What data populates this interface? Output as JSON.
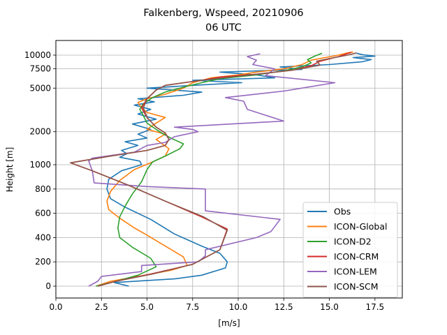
{
  "chart_data": {
    "type": "line",
    "title_line1": "Falkenberg, Wspeed, 20210906",
    "title_line2": "06 UTC",
    "xlabel": "[m/s]",
    "ylabel": "Height [m]",
    "xlim": [
      0,
      19
    ],
    "x_ticks": [
      0.0,
      2.5,
      5.0,
      7.5,
      10.0,
      12.5,
      15.0,
      17.5
    ],
    "x_tick_labels": [
      "0.0",
      "2.5",
      "5.0",
      "7.5",
      "10.0",
      "12.5",
      "15.0",
      "17.5"
    ],
    "y_ticks": [
      0,
      200,
      400,
      600,
      800,
      1000,
      2000,
      5000,
      7500,
      10000
    ],
    "y_tick_labels": [
      "0",
      "200",
      "400",
      "600",
      "800",
      "1000",
      "2000",
      "5000",
      "7500",
      "10000"
    ],
    "y_scale": "piecewise: linear 0-1000 m, logarithmic above 1000 m",
    "grid": true,
    "legend_position": "lower right",
    "series": [
      {
        "name": "Obs",
        "color": "#1f77b4",
        "points": [
          [
            4.0,
            0
          ],
          [
            3.2,
            30
          ],
          [
            6.5,
            60
          ],
          [
            8.0,
            90
          ],
          [
            9.3,
            150
          ],
          [
            9.4,
            200
          ],
          [
            9.0,
            270
          ],
          [
            8.0,
            330
          ],
          [
            6.5,
            430
          ],
          [
            5.2,
            550
          ],
          [
            3.8,
            650
          ],
          [
            3.0,
            720
          ],
          [
            2.8,
            800
          ],
          [
            2.9,
            880
          ],
          [
            3.6,
            950
          ],
          [
            4.7,
            1000
          ],
          [
            4.6,
            1080
          ],
          [
            3.5,
            1170
          ],
          [
            3.9,
            1260
          ],
          [
            3.6,
            1350
          ],
          [
            4.5,
            1500
          ],
          [
            3.8,
            1620
          ],
          [
            5.0,
            1750
          ],
          [
            4.5,
            1900
          ],
          [
            5.2,
            2100
          ],
          [
            4.2,
            2350
          ],
          [
            5.5,
            2600
          ],
          [
            4.5,
            2900
          ],
          [
            5.2,
            3200
          ],
          [
            4.3,
            3500
          ],
          [
            5.4,
            3750
          ],
          [
            4.5,
            4000
          ],
          [
            7.0,
            4300
          ],
          [
            8.0,
            4600
          ],
          [
            5.0,
            5000
          ],
          [
            7.5,
            5300
          ],
          [
            10.2,
            5600
          ],
          [
            7.5,
            5900
          ],
          [
            12.0,
            6200
          ],
          [
            11.0,
            6600
          ],
          [
            9.0,
            7000
          ],
          [
            13.5,
            7400
          ],
          [
            12.3,
            7800
          ],
          [
            15.0,
            8200
          ],
          [
            16.8,
            8700
          ],
          [
            17.3,
            9100
          ],
          [
            16.3,
            9500
          ],
          [
            17.5,
            9800
          ],
          [
            16.8,
            10100
          ],
          [
            16.5,
            10400
          ]
        ]
      },
      {
        "name": "ICON-Global",
        "color": "#ff7f0e",
        "points": [
          [
            2.2,
            0
          ],
          [
            3.0,
            40
          ],
          [
            4.5,
            80
          ],
          [
            6.3,
            130
          ],
          [
            7.2,
            170
          ],
          [
            7.0,
            240
          ],
          [
            6.0,
            330
          ],
          [
            5.0,
            420
          ],
          [
            4.3,
            480
          ],
          [
            3.5,
            560
          ],
          [
            2.9,
            630
          ],
          [
            2.8,
            700
          ],
          [
            3.0,
            780
          ],
          [
            3.5,
            870
          ],
          [
            4.3,
            960
          ],
          [
            5.3,
            1060
          ],
          [
            6.0,
            1200
          ],
          [
            6.2,
            1400
          ],
          [
            5.5,
            1700
          ],
          [
            6.0,
            1900
          ],
          [
            5.0,
            2100
          ],
          [
            5.5,
            2400
          ],
          [
            6.0,
            2700
          ],
          [
            5.0,
            3000
          ],
          [
            4.7,
            3300
          ],
          [
            4.5,
            3700
          ],
          [
            5.0,
            4000
          ],
          [
            6.0,
            4400
          ],
          [
            7.0,
            5000
          ],
          [
            7.5,
            5600
          ],
          [
            8.5,
            6200
          ],
          [
            10.0,
            6600
          ],
          [
            11.0,
            7000
          ],
          [
            12.5,
            7500
          ],
          [
            13.5,
            8200
          ],
          [
            14.0,
            9000
          ],
          [
            15.5,
            10000
          ],
          [
            16.0,
            10500
          ],
          [
            16.3,
            10700
          ]
        ]
      },
      {
        "name": "ICON-D2",
        "color": "#2ca02c",
        "points": [
          [
            2.2,
            0
          ],
          [
            3.3,
            40
          ],
          [
            4.5,
            90
          ],
          [
            5.5,
            160
          ],
          [
            5.2,
            230
          ],
          [
            4.2,
            320
          ],
          [
            3.5,
            400
          ],
          [
            3.4,
            480
          ],
          [
            3.5,
            570
          ],
          [
            3.8,
            660
          ],
          [
            4.2,
            760
          ],
          [
            4.7,
            860
          ],
          [
            5.0,
            960
          ],
          [
            5.3,
            1060
          ],
          [
            6.0,
            1200
          ],
          [
            6.8,
            1400
          ],
          [
            7.0,
            1550
          ],
          [
            6.3,
            1750
          ],
          [
            5.8,
            1950
          ],
          [
            5.5,
            2100
          ],
          [
            5.0,
            2400
          ],
          [
            4.8,
            2800
          ],
          [
            4.6,
            3200
          ],
          [
            4.8,
            3600
          ],
          [
            5.3,
            4100
          ],
          [
            6.0,
            4600
          ],
          [
            7.0,
            5100
          ],
          [
            8.0,
            5600
          ],
          [
            9.0,
            6100
          ],
          [
            11.0,
            6600
          ],
          [
            12.5,
            7200
          ],
          [
            13.5,
            7800
          ],
          [
            14.0,
            8500
          ],
          [
            13.8,
            9100
          ],
          [
            14.2,
            9800
          ],
          [
            14.6,
            10400
          ]
        ]
      },
      {
        "name": "ICON-CRM",
        "color": "#d62728",
        "points": [
          [
            2.3,
            0
          ],
          [
            3.3,
            40
          ],
          [
            5.2,
            100
          ],
          [
            7.5,
            180
          ],
          [
            9.0,
            300
          ],
          [
            9.4,
            470
          ],
          [
            8.0,
            570
          ],
          [
            6.0,
            700
          ],
          [
            4.0,
            830
          ],
          [
            2.0,
            950
          ],
          [
            0.8,
            1040
          ],
          [
            3.0,
            1200
          ],
          [
            5.0,
            1350
          ],
          [
            6.0,
            1500
          ],
          [
            6.2,
            1700
          ],
          [
            6.0,
            1950
          ],
          [
            5.5,
            2200
          ],
          [
            5.0,
            2700
          ],
          [
            4.7,
            3300
          ],
          [
            5.0,
            4000
          ],
          [
            5.5,
            4800
          ],
          [
            6.0,
            5300
          ],
          [
            8.0,
            5900
          ],
          [
            9.0,
            6300
          ],
          [
            11.0,
            6700
          ],
          [
            13.0,
            7300
          ],
          [
            14.0,
            8000
          ],
          [
            14.5,
            8800
          ],
          [
            15.5,
            9700
          ],
          [
            16.2,
            10600
          ]
        ]
      },
      {
        "name": "ICON-LEM",
        "color": "#9467bd",
        "points": [
          [
            1.8,
            0
          ],
          [
            2.3,
            40
          ],
          [
            2.5,
            80
          ],
          [
            4.7,
            120
          ],
          [
            4.7,
            170
          ],
          [
            7.8,
            200
          ],
          [
            8.2,
            250
          ],
          [
            8.2,
            300
          ],
          [
            11.0,
            400
          ],
          [
            11.8,
            450
          ],
          [
            12.3,
            550
          ],
          [
            8.2,
            620
          ],
          [
            8.2,
            720
          ],
          [
            8.2,
            800
          ],
          [
            5.0,
            820
          ],
          [
            2.1,
            850
          ],
          [
            2.0,
            950
          ],
          [
            1.8,
            1080
          ],
          [
            2.0,
            1150
          ],
          [
            4.3,
            1300
          ],
          [
            5.0,
            1500
          ],
          [
            6.0,
            1600
          ],
          [
            6.5,
            1800
          ],
          [
            7.8,
            2000
          ],
          [
            7.5,
            2100
          ],
          [
            6.5,
            2200
          ],
          [
            12.5,
            2500
          ],
          [
            10.5,
            3200
          ],
          [
            10.3,
            3800
          ],
          [
            9.3,
            4100
          ],
          [
            12.5,
            4700
          ],
          [
            15.3,
            5600
          ],
          [
            11.5,
            6500
          ],
          [
            12.0,
            7500
          ],
          [
            10.8,
            8200
          ],
          [
            11.0,
            9000
          ],
          [
            10.5,
            9700
          ],
          [
            11.2,
            10300
          ]
        ]
      },
      {
        "name": "ICON-SCM",
        "color": "#8c564b",
        "points": [
          [
            2.3,
            0
          ],
          [
            3.3,
            40
          ],
          [
            5.3,
            100
          ],
          [
            7.5,
            180
          ],
          [
            9.0,
            300
          ],
          [
            9.4,
            460
          ],
          [
            8.1,
            570
          ],
          [
            6.0,
            700
          ],
          [
            4.0,
            830
          ],
          [
            2.0,
            950
          ],
          [
            0.8,
            1040
          ],
          [
            3.0,
            1200
          ],
          [
            5.0,
            1350
          ],
          [
            6.0,
            1500
          ],
          [
            6.2,
            1700
          ],
          [
            6.0,
            1950
          ],
          [
            5.5,
            2200
          ],
          [
            5.0,
            2700
          ],
          [
            4.8,
            3300
          ],
          [
            5.0,
            4000
          ],
          [
            5.5,
            4800
          ],
          [
            6.0,
            5300
          ],
          [
            8.0,
            5900
          ],
          [
            9.5,
            6300
          ],
          [
            11.0,
            6700
          ],
          [
            13.0,
            7300
          ],
          [
            14.5,
            8100
          ],
          [
            14.3,
            8800
          ],
          [
            15.0,
            9300
          ],
          [
            16.0,
            10000
          ],
          [
            16.5,
            10500
          ]
        ]
      }
    ]
  }
}
